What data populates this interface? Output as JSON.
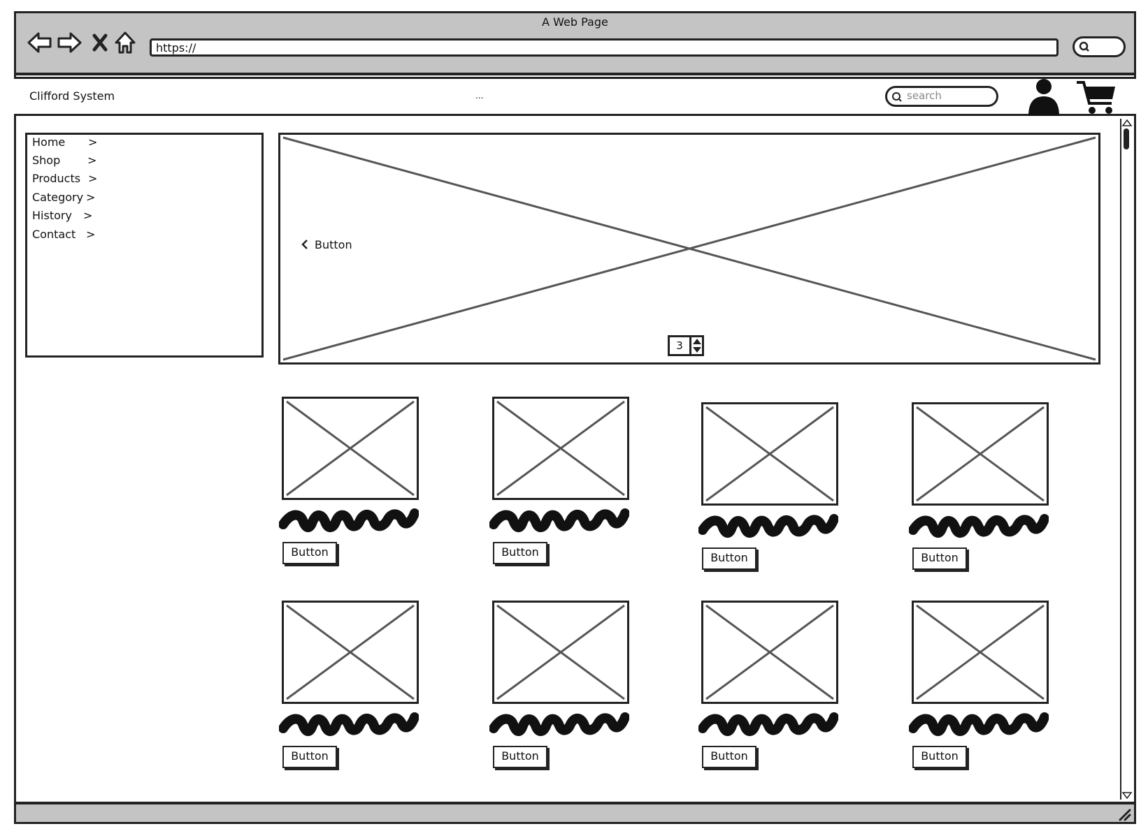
{
  "window": {
    "title": "A Web Page",
    "url": "https://",
    "nav_icons": [
      "back-arrow-icon",
      "forward-arrow-icon",
      "close-icon",
      "home-icon"
    ]
  },
  "header": {
    "brand": "Clifford System",
    "middle_text": "...",
    "search_placeholder": "search",
    "icons": [
      "user-avatar-icon",
      "shopping-cart-icon"
    ]
  },
  "sidebar": {
    "items": [
      {
        "label": "Home",
        "arrow": ">"
      },
      {
        "label": "Shop",
        "arrow": ">"
      },
      {
        "label": "Products",
        "arrow": ">"
      },
      {
        "label": "Category",
        "arrow": ">"
      },
      {
        "label": "History",
        "arrow": ">"
      },
      {
        "label": "Contact",
        "arrow": ">"
      }
    ]
  },
  "hero": {
    "button_label": "Button",
    "stepper_value": "3"
  },
  "products": [
    {
      "button_label": "Button"
    },
    {
      "button_label": "Button"
    },
    {
      "button_label": "Button"
    },
    {
      "button_label": "Button"
    },
    {
      "button_label": "Button"
    },
    {
      "button_label": "Button"
    },
    {
      "button_label": "Button"
    },
    {
      "button_label": "Button"
    }
  ],
  "colors": {
    "chrome_gray": "#c4c4c4",
    "ink": "#222222",
    "placeholder_cross": "#555555"
  }
}
